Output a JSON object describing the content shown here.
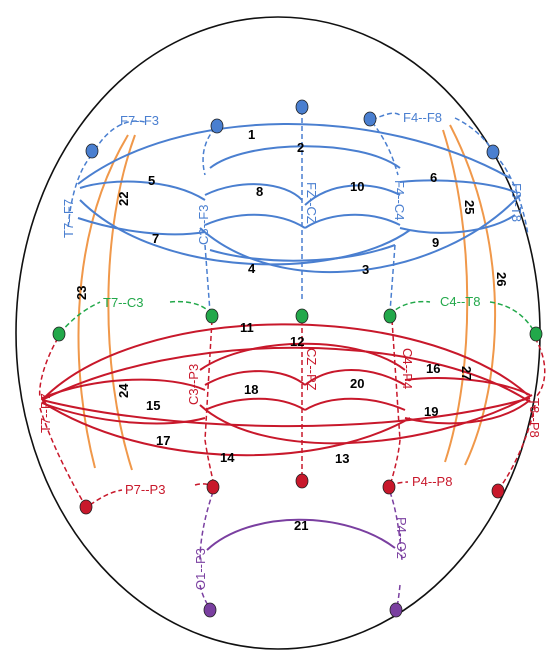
{
  "colors": {
    "frontal": "#4a7fd0",
    "central": "#22a84a",
    "parietal": "#c8182b",
    "occipital": "#7a3fa0",
    "orange": "#f0984a",
    "outline": "#111111"
  },
  "node_labels": {
    "f7_f3": "F7--F3",
    "f4_f8": "F4--F8",
    "t7_f7": "T7--F7",
    "c3_f3": "C3--F3",
    "fz_cz": "FZ--CZ",
    "f4_c4": "F4--C4",
    "f8_t8": "F8--T8",
    "t7_c3": "T7--C3",
    "c4_t8": "C4--T8",
    "t7_p7": "T7--P7",
    "c3_p3": "C3--P3",
    "cz_pz": "CZ--PZ",
    "c4_p4": "C4--P4",
    "t8_p8": "T8--P8",
    "p7_p3": "P7--P3",
    "p4_p8": "P4--P8",
    "o1_p3": "O1--P3",
    "p4_o2": "P4--O2"
  },
  "edge_numbers": {
    "n1": "1",
    "n2": "2",
    "n3": "3",
    "n4": "4",
    "n5": "5",
    "n6": "6",
    "n7": "7",
    "n8": "8",
    "n9": "9",
    "n10": "10",
    "n11": "11",
    "n12": "12",
    "n13": "13",
    "n14": "14",
    "n15": "15",
    "n16": "16",
    "n17": "17",
    "n18": "18",
    "n19": "19",
    "n20": "20",
    "n21": "21",
    "n22": "22",
    "n23": "23",
    "n24": "24",
    "n25": "25",
    "n26": "26",
    "n27": "27"
  }
}
